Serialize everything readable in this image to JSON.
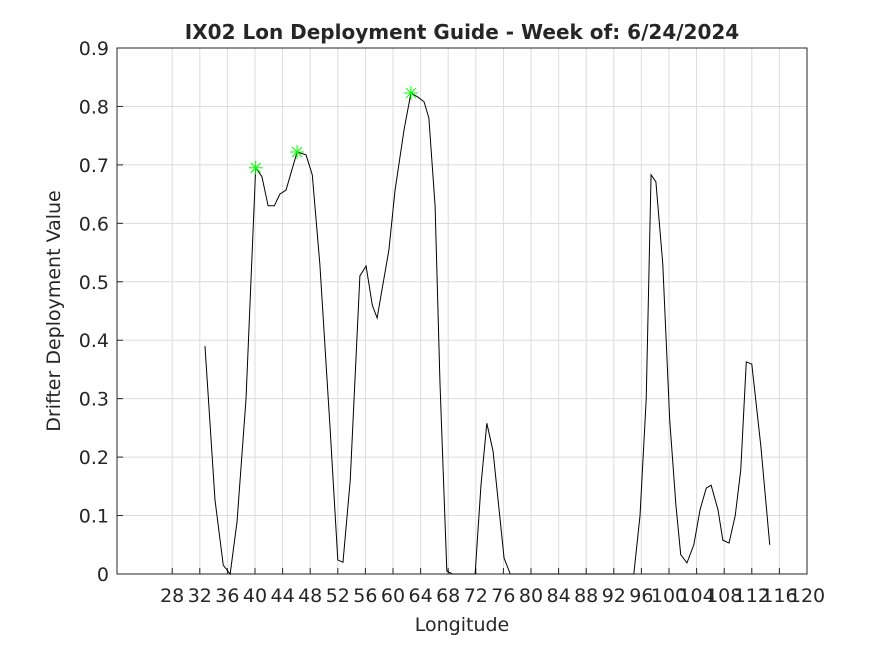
{
  "chart_data": {
    "type": "line",
    "title": "IX02 Lon Deployment Guide - Week of: 6/24/2024",
    "x_label": "Longitude",
    "y_label": "Drifter Deployment Value",
    "x": [
      32.75,
      34.2,
      35.4,
      36.4,
      37.4,
      38.7,
      40.1,
      41.0,
      41.9,
      42.8,
      43.6,
      44.5,
      46.1,
      47.4,
      48.3,
      49.4,
      50.9,
      52.0,
      52.75,
      53.8,
      55.2,
      56.1,
      57.0,
      57.7,
      58.4,
      59.4,
      60.3,
      61.6,
      62.6,
      63.6,
      64.5,
      65.2,
      66.1,
      66.8,
      67.8,
      68.6,
      71.9,
      72.75,
      73.6,
      74.5,
      76.1,
      77.0,
      94.9,
      95.8,
      96.7,
      97.4,
      98.1,
      99.1,
      100.1,
      101.0,
      101.7,
      102.6,
      103.6,
      104.5,
      105.4,
      106.1,
      107.1,
      107.8,
      108.7,
      109.6,
      110.4,
      111.2,
      112.0,
      113.3,
      114.6
    ],
    "series": [
      {
        "color": "#000000",
        "values": [
          0.39,
          0.127,
          0.015,
          0,
          0.09,
          0.3,
          0.695,
          0.68,
          0.63,
          0.63,
          0.65,
          0.657,
          0.722,
          0.717,
          0.683,
          0.53,
          0.246,
          0.024,
          0.02,
          0.16,
          0.51,
          0.527,
          0.46,
          0.438,
          0.486,
          0.554,
          0.657,
          0.76,
          0.823,
          0.816,
          0.808,
          0.78,
          0.63,
          0.33,
          0.005,
          0,
          0,
          0.152,
          0.258,
          0.21,
          0.027,
          0,
          0,
          0.1,
          0.3,
          0.683,
          0.671,
          0.53,
          0.264,
          0.118,
          0.033,
          0.019,
          0.05,
          0.11,
          0.147,
          0.152,
          0.11,
          0.058,
          0.053,
          0.1,
          0.178,
          0.363,
          0.359,
          0.22,
          0.05
        ]
      }
    ],
    "peaks": {
      "color": "#00ff00",
      "x": [
        40.1,
        46.1,
        62.6
      ],
      "values": [
        0.695,
        0.722,
        0.823
      ]
    },
    "xlim": [
      20,
      120
    ],
    "xticks": [
      28,
      32,
      36,
      40,
      44,
      48,
      52,
      56,
      60,
      64,
      68,
      72,
      76,
      80,
      84,
      88,
      92,
      96,
      100,
      104,
      108,
      112,
      116,
      120
    ],
    "ylim": [
      0,
      0.9
    ],
    "yticks": [
      0,
      0.1,
      0.2,
      0.3,
      0.4,
      0.5,
      0.6,
      0.7,
      0.8,
      0.9
    ],
    "grid": true
  }
}
